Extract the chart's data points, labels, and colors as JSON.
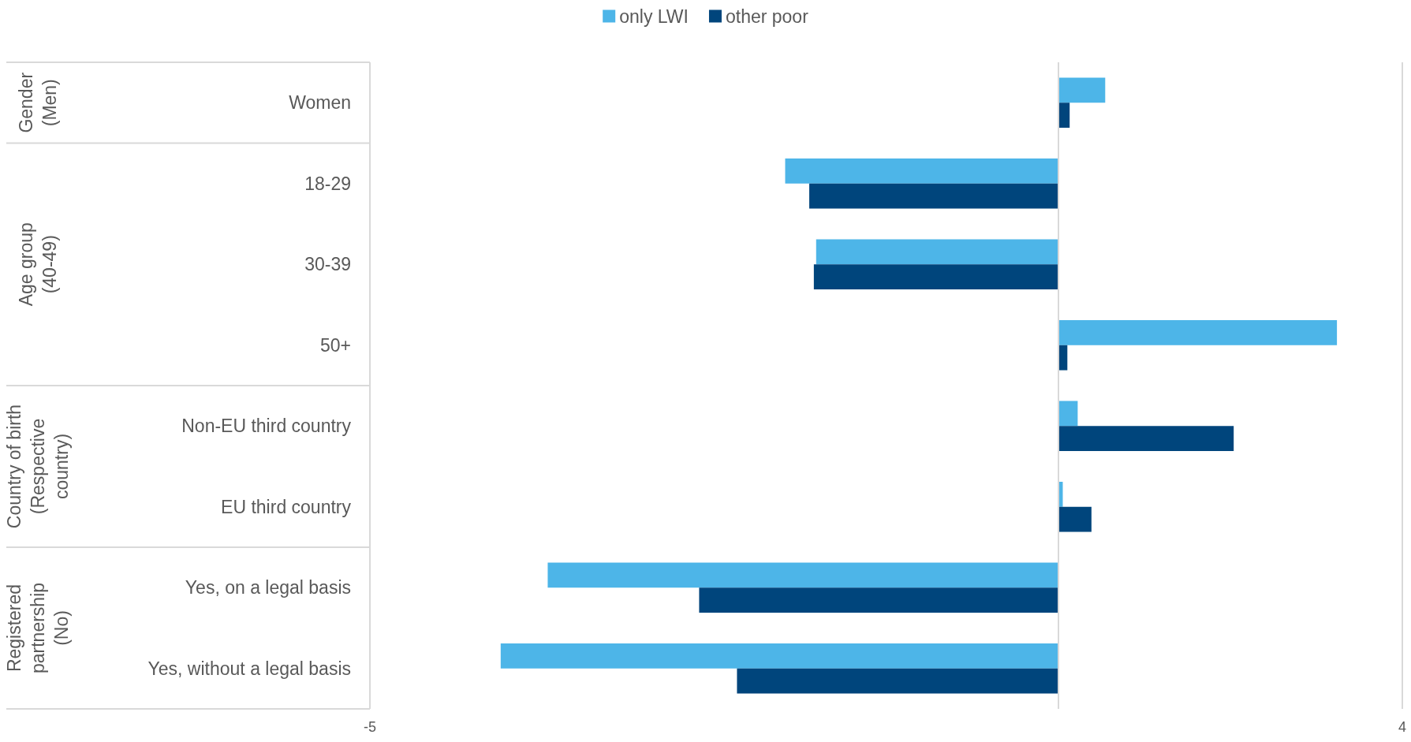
{
  "chart_data": {
    "type": "bar",
    "orientation": "horizontal",
    "categories": [
      "Women",
      "18-29",
      "30-39",
      "50+",
      "Non-EU third country",
      "EU third country",
      "Yes, on a legal basis",
      "Yes, without a legal basis"
    ],
    "series": [
      {
        "name": "only LWI",
        "color": "#4db5e8",
        "base": [
          1,
          1,
          1,
          1,
          1,
          1,
          1,
          1
        ],
        "values": [
          0.41,
          -2.38,
          -2.11,
          2.43,
          0.17,
          0.04,
          -4.45,
          -4.86
        ]
      },
      {
        "name": "other poor",
        "color": "#00457c",
        "base": [
          1,
          1,
          1,
          1,
          1,
          1,
          1,
          1
        ],
        "values": [
          0.1,
          -2.17,
          -2.13,
          0.08,
          1.53,
          0.29,
          -3.13,
          -2.8
        ]
      }
    ],
    "xlim": [
      -5,
      4
    ],
    "xticks": [
      -5,
      4
    ],
    "legend": "top",
    "ref_lines": [
      {
        "axis": "x",
        "value": 1,
        "color": "#d9d9d9"
      }
    ],
    "annotations": [
      "Gender\n(Men)",
      "Age group\n(40-49)",
      "Country of birth\n(Respective\ncountry)",
      "Registered\npartnership\n(No)"
    ]
  }
}
